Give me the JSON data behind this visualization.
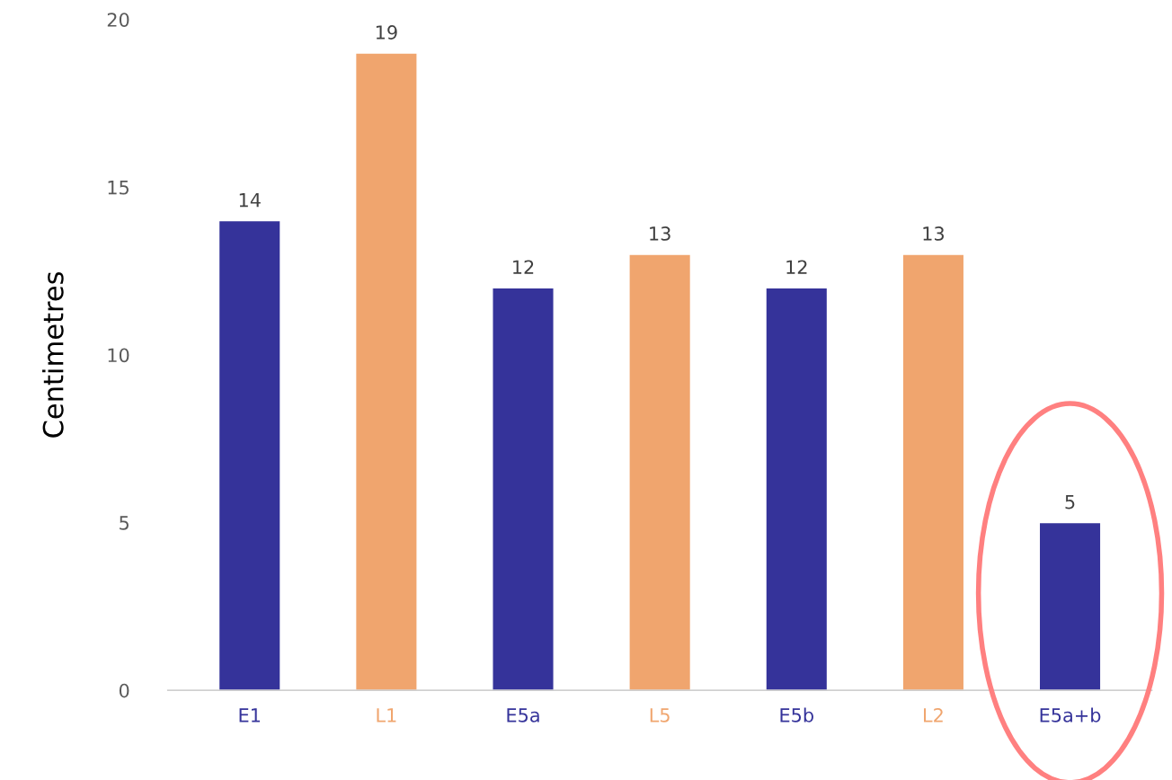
{
  "chart_data": {
    "type": "bar",
    "ylabel": "Centimetres",
    "categories": [
      "E1",
      "L1",
      "E5a",
      "L5",
      "E5b",
      "L2",
      "E5a+b"
    ],
    "values": [
      14,
      19,
      12,
      13,
      12,
      13,
      5
    ],
    "colors": [
      "#35339a",
      "#f0a56e",
      "#35339a",
      "#f0a56e",
      "#35339a",
      "#f0a56e",
      "#35339a"
    ],
    "ylim": [
      0,
      20
    ],
    "yticks": [
      0,
      5,
      10,
      15,
      20
    ],
    "data_labels": true,
    "grid": false
  }
}
